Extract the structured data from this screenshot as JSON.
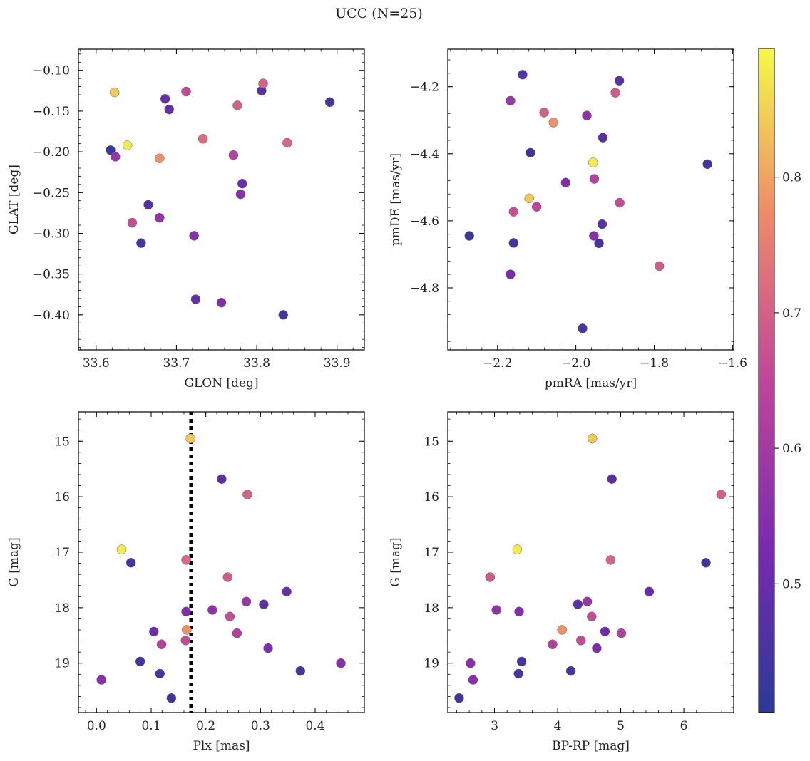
{
  "title": "UCC (N=25)",
  "colorbar": {
    "cmap": "plasma",
    "range": [
      0.405,
      0.895
    ],
    "ticks": [
      0.5,
      0.6,
      0.7,
      0.8
    ],
    "tick_labels": [
      "0.5",
      "0.6",
      "0.7",
      "0.8"
    ]
  },
  "chart_data": [
    {
      "type": "scatter",
      "id": "glon-glat",
      "xlabel": "GLON [deg]",
      "ylabel": "GLAT [deg]",
      "xlim": [
        33.578,
        33.934
      ],
      "ylim": [
        -0.443,
        -0.074
      ],
      "xticks": [
        33.6,
        33.7,
        33.8,
        33.9
      ],
      "xtick_labels": [
        "33.6",
        "33.7",
        "33.8",
        "33.9"
      ],
      "yticks": [
        -0.1,
        -0.15,
        -0.2,
        -0.25,
        -0.3,
        -0.35,
        -0.4
      ],
      "ytick_labels": [
        "−0.10",
        "−0.15",
        "−0.20",
        "−0.25",
        "−0.30",
        "−0.35",
        "−0.40"
      ],
      "x": [
        33.623,
        33.639,
        33.618,
        33.624,
        33.679,
        33.686,
        33.691,
        33.712,
        33.733,
        33.776,
        33.806,
        33.808,
        33.891,
        33.838,
        33.771,
        33.782,
        33.78,
        33.665,
        33.679,
        33.645,
        33.722,
        33.656,
        33.724,
        33.756,
        33.833
      ],
      "y": [
        -0.127,
        -0.192,
        -0.198,
        -0.206,
        -0.208,
        -0.135,
        -0.148,
        -0.126,
        -0.184,
        -0.143,
        -0.125,
        -0.116,
        -0.139,
        -0.189,
        -0.204,
        -0.239,
        -0.252,
        -0.265,
        -0.281,
        -0.287,
        -0.303,
        -0.312,
        -0.381,
        -0.385,
        -0.4
      ],
      "c": [
        0.84,
        0.88,
        0.43,
        0.58,
        0.78,
        0.5,
        0.49,
        0.66,
        0.72,
        0.7,
        0.48,
        0.7,
        0.45,
        0.71,
        0.63,
        0.5,
        0.55,
        0.46,
        0.57,
        0.66,
        0.55,
        0.45,
        0.49,
        0.54,
        0.44
      ]
    },
    {
      "type": "scatter",
      "id": "pmra-pmde",
      "xlabel": "pmRA [mas/yr]",
      "ylabel": "pmDE [mas/yr]",
      "xlim": [
        -2.327,
        -1.597
      ],
      "ylim": [
        -4.985,
        -4.088
      ],
      "xticks": [
        -2.2,
        -2.0,
        -1.8,
        -1.6
      ],
      "xtick_labels": [
        "−2.2",
        "−2.0",
        "−1.8",
        "−1.6"
      ],
      "yticks": [
        -4.2,
        -4.4,
        -4.6,
        -4.8
      ],
      "ytick_labels": [
        "−4.2",
        "−4.4",
        "−4.6",
        "−4.8"
      ],
      "x": [
        -2.136,
        -1.889,
        -2.167,
        -1.899,
        -2.081,
        -2.057,
        -1.972,
        -1.931,
        -2.116,
        -1.956,
        -1.664,
        -2.026,
        -1.953,
        -2.119,
        -1.888,
        -2.1,
        -2.159,
        -1.933,
        -2.272,
        -1.954,
        -2.159,
        -1.941,
        -1.787,
        -2.167,
        -1.983
      ],
      "y": [
        -4.164,
        -4.182,
        -4.242,
        -4.218,
        -4.277,
        -4.307,
        -4.286,
        -4.352,
        -4.397,
        -4.426,
        -4.431,
        -4.486,
        -4.475,
        -4.533,
        -4.546,
        -4.558,
        -4.573,
        -4.61,
        -4.645,
        -4.645,
        -4.666,
        -4.667,
        -4.735,
        -4.76,
        -4.921
      ],
      "c": [
        0.47,
        0.48,
        0.58,
        0.69,
        0.7,
        0.78,
        0.57,
        0.47,
        0.44,
        0.88,
        0.44,
        0.54,
        0.63,
        0.84,
        0.66,
        0.65,
        0.67,
        0.47,
        0.43,
        0.55,
        0.44,
        0.45,
        0.69,
        0.53,
        0.46
      ]
    },
    {
      "type": "scatter",
      "id": "plx-g",
      "xlabel": "Plx [mas]",
      "ylabel": "G [mag]",
      "xlim": [
        -0.033,
        0.49
      ],
      "ylim": [
        19.89,
        14.47
      ],
      "invert_y": true,
      "xticks": [
        0.0,
        0.1,
        0.2,
        0.3,
        0.4
      ],
      "xtick_labels": [
        "0.0",
        "0.1",
        "0.2",
        "0.3",
        "0.4"
      ],
      "yticks": [
        15,
        16,
        17,
        18,
        19
      ],
      "ytick_labels": [
        "15",
        "16",
        "17",
        "18",
        "19"
      ],
      "vline": {
        "x": 0.173,
        "style": "dotted"
      },
      "x": [
        0.172,
        0.229,
        0.276,
        0.046,
        0.063,
        0.164,
        0.24,
        0.348,
        0.274,
        0.306,
        0.212,
        0.164,
        0.244,
        0.105,
        0.165,
        0.257,
        0.119,
        0.163,
        0.314,
        0.08,
        0.373,
        0.447,
        0.116,
        0.009,
        0.137
      ],
      "y": [
        14.95,
        15.68,
        15.96,
        16.95,
        17.19,
        17.14,
        17.45,
        17.71,
        17.89,
        17.94,
        18.04,
        18.07,
        18.16,
        18.43,
        18.4,
        18.46,
        18.66,
        18.59,
        18.73,
        18.97,
        19.14,
        19.0,
        19.19,
        19.3,
        19.63
      ],
      "c": [
        0.84,
        0.48,
        0.7,
        0.88,
        0.44,
        0.71,
        0.69,
        0.5,
        0.58,
        0.48,
        0.57,
        0.54,
        0.66,
        0.51,
        0.78,
        0.63,
        0.63,
        0.66,
        0.53,
        0.45,
        0.44,
        0.55,
        0.45,
        0.55,
        0.43
      ]
    },
    {
      "type": "scatter",
      "id": "bprp-g",
      "xlabel": "BP-RP [mag]",
      "ylabel": "G [mag]",
      "xlim": [
        2.26,
        6.79
      ],
      "ylim": [
        19.89,
        14.47
      ],
      "invert_y": true,
      "xticks": [
        3,
        4,
        5,
        6
      ],
      "xtick_labels": [
        "3",
        "4",
        "5",
        "6"
      ],
      "yticks": [
        15,
        16,
        17,
        18,
        19
      ],
      "ytick_labels": [
        "15",
        "16",
        "17",
        "18",
        "19"
      ],
      "x": [
        4.55,
        4.86,
        6.59,
        3.36,
        6.35,
        4.84,
        2.93,
        5.45,
        4.47,
        4.32,
        3.03,
        3.39,
        4.54,
        4.75,
        4.07,
        5.01,
        3.92,
        4.37,
        4.62,
        3.43,
        4.21,
        2.62,
        3.38,
        2.66,
        2.44
      ],
      "y": [
        14.95,
        15.68,
        15.96,
        16.95,
        17.19,
        17.14,
        17.45,
        17.71,
        17.89,
        17.94,
        18.04,
        18.07,
        18.16,
        18.43,
        18.4,
        18.46,
        18.66,
        18.59,
        18.73,
        18.97,
        19.14,
        19.0,
        19.19,
        19.3,
        19.63
      ],
      "c": [
        0.84,
        0.48,
        0.7,
        0.88,
        0.44,
        0.71,
        0.69,
        0.5,
        0.58,
        0.48,
        0.57,
        0.54,
        0.66,
        0.51,
        0.78,
        0.63,
        0.63,
        0.66,
        0.53,
        0.45,
        0.44,
        0.55,
        0.45,
        0.55,
        0.43
      ]
    }
  ]
}
